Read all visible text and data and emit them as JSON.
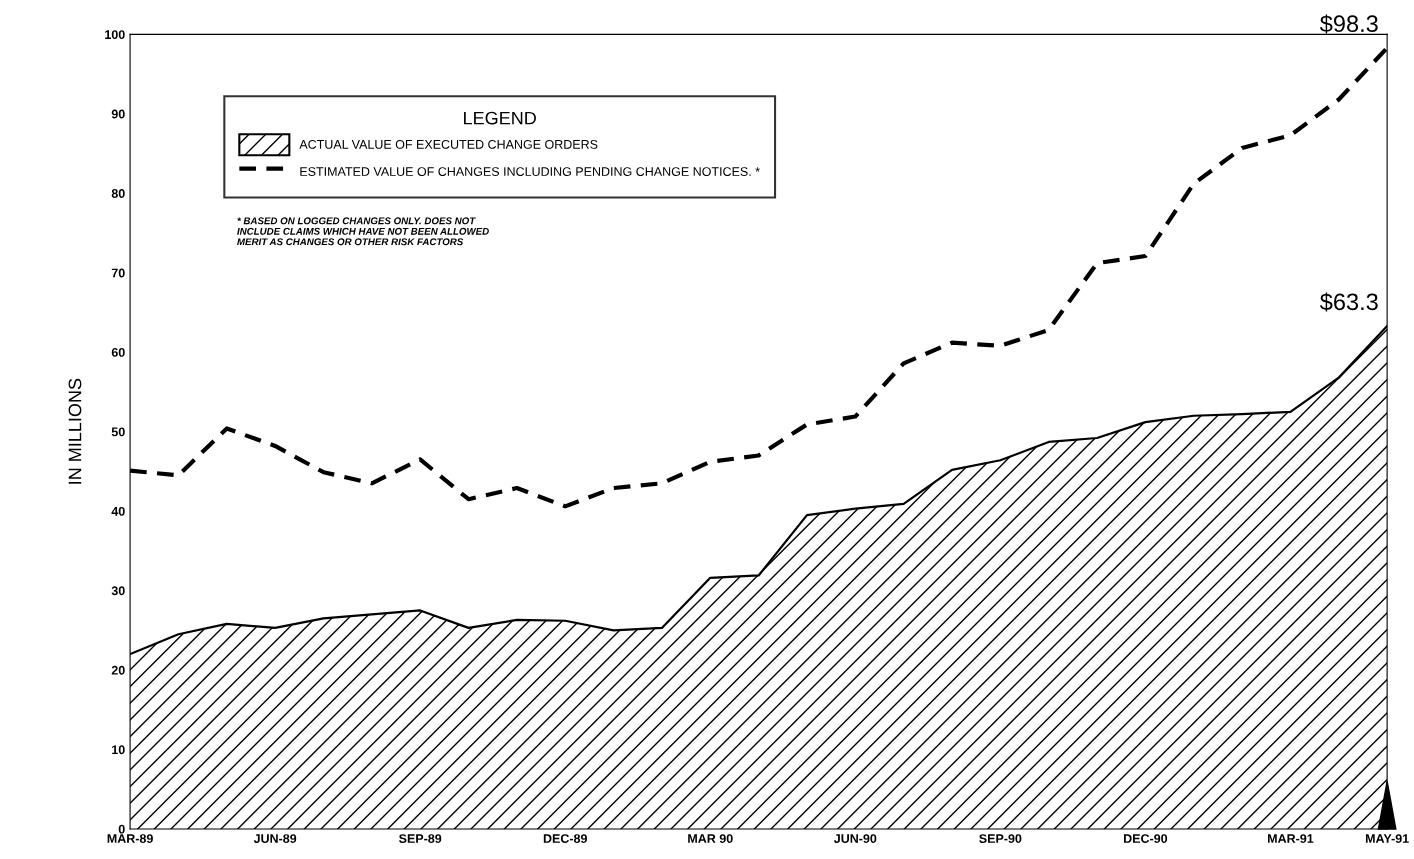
{
  "chart_data": {
    "type": "area",
    "ylabel": "IN MILLIONS",
    "legend_title": "LEGEND",
    "legend": "top left",
    "grid": false,
    "categories": [
      "MAR-89",
      null,
      null,
      "JUN-89",
      null,
      null,
      "SEP-89",
      null,
      null,
      "DEC-89",
      null,
      null,
      "MAR 90",
      null,
      null,
      "JUN-90",
      null,
      null,
      "SEP-90",
      null,
      null,
      "DEC-90",
      null,
      null,
      "MAR-91",
      null,
      "MAY-91"
    ],
    "ylim": [
      0,
      100
    ],
    "yticks": [
      0,
      10,
      20,
      30,
      40,
      50,
      60,
      70,
      80,
      90,
      100
    ],
    "series": [
      {
        "name": "ACTUAL VALUE OF EXECUTED CHANGE ORDERS",
        "color": "#000000",
        "values": [
          22.0,
          24.5,
          25.8,
          25.3,
          26.5,
          27.0,
          27.5,
          25.3,
          26.3,
          26.2,
          25.0,
          25.3,
          31.6,
          31.9,
          39.5,
          40.3,
          40.9,
          45.2,
          46.4,
          48.7,
          49.2,
          51.2,
          52.0,
          52.2,
          52.5,
          56.8,
          63.3
        ]
      },
      {
        "name": "ESTIMATED VALUE OF CHANGES INCLUDING PENDING CHANGE NOTICES. *",
        "type": "line",
        "line_style": "dashed",
        "color": "#000000",
        "values": [
          45.1,
          44.5,
          50.4,
          48.2,
          44.9,
          43.5,
          46.5,
          41.5,
          42.9,
          40.6,
          42.9,
          43.5,
          46.2,
          47.0,
          50.9,
          51.9,
          58.6,
          61.2,
          60.8,
          62.8,
          71.2,
          72.1,
          81.2,
          85.7,
          87.3,
          91.8,
          98.3
        ]
      }
    ],
    "annotations": [
      {
        "text": "$98.3",
        "x": "MAY-91",
        "y": 98.3
      },
      {
        "text": "$63.3",
        "x": "MAY-91",
        "y": 63.3
      },
      "* BASED ON LOGGED CHANGES ONLY. DOES NOT\nINCLUDE CLAIMS WHICH HAVE NOT BEEN ALLOWED\nMERIT AS CHANGES OR OTHER RISK FACTORS"
    ]
  }
}
